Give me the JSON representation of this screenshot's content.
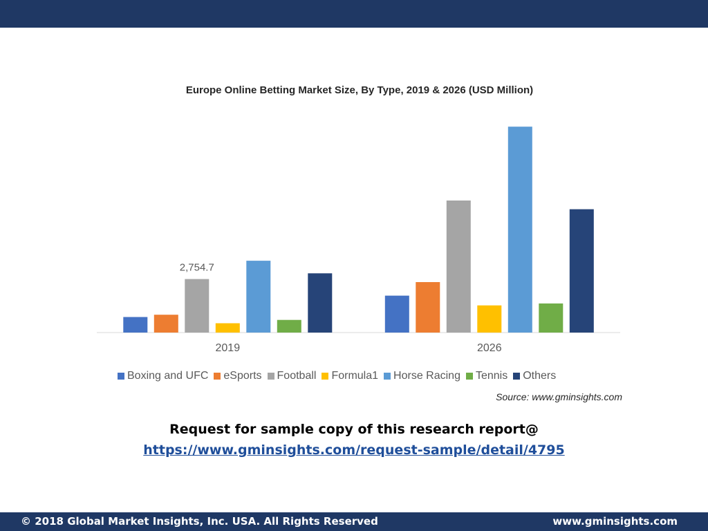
{
  "header": {
    "banner_color": "#1f3864"
  },
  "chart_data": {
    "type": "bar",
    "title": "Europe Online Betting Market Size, By Type, 2019 & 2026 (USD Million)",
    "categories": [
      "2019",
      "2026"
    ],
    "series": [
      {
        "name": "Boxing and UFC",
        "color": "#4472c4",
        "values": [
          800,
          1900
        ]
      },
      {
        "name": "eSports",
        "color": "#ed7d31",
        "values": [
          920,
          2600
        ]
      },
      {
        "name": "Football",
        "color": "#a5a5a5",
        "values": [
          2754.7,
          6800
        ]
      },
      {
        "name": "Formula1",
        "color": "#ffc000",
        "values": [
          480,
          1400
        ]
      },
      {
        "name": "Horse Racing",
        "color": "#5b9bd5",
        "values": [
          3700,
          10600
        ]
      },
      {
        "name": "Tennis",
        "color": "#70ad47",
        "values": [
          650,
          1500
        ]
      },
      {
        "name": "Others",
        "color": "#264478",
        "values": [
          3050,
          6350
        ]
      }
    ],
    "data_labels": [
      {
        "series": "Football",
        "category": "2019",
        "text": "2,754.7"
      }
    ],
    "xlabel": "",
    "ylabel": "",
    "ylim": [
      0,
      11000
    ],
    "grid": false,
    "legend_position": "bottom",
    "source": "Source: www.gminsights.com"
  },
  "cta": {
    "text": "Request for sample copy of this research report@",
    "link": "https://www.gminsights.com/request-sample/detail/4795"
  },
  "footer": {
    "copyright": "© 2018 Global Market Insights, Inc. USA. All Rights Reserved",
    "website": "www.gminsights.com"
  }
}
